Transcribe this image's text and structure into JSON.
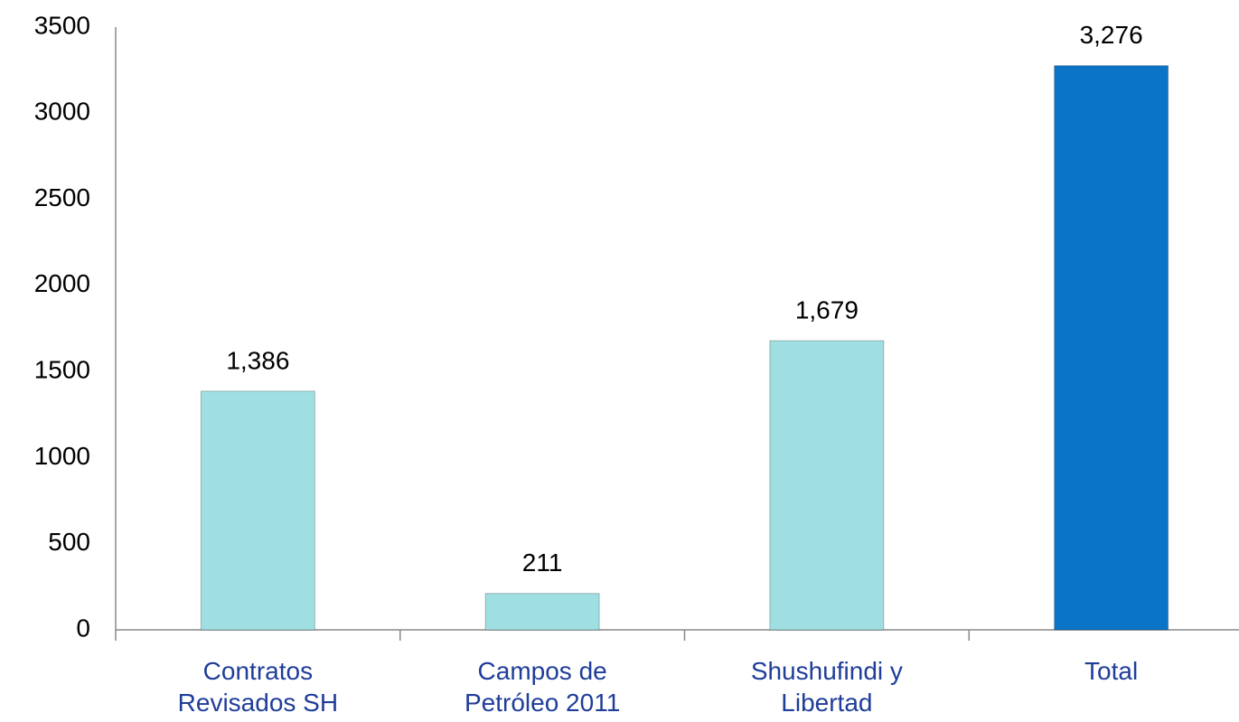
{
  "chart_data": {
    "type": "bar",
    "categories": [
      "Contratos Revisados SH",
      "Campos de Petróleo 2011",
      "Shushufindi y Libertad",
      "Total"
    ],
    "values": [
      1386,
      211,
      1679,
      3276
    ],
    "value_labels": [
      "1,386",
      "211",
      "1,679",
      "3,276"
    ],
    "colors": [
      "#9fdfe2",
      "#9fdfe2",
      "#9fdfe2",
      "#0a74c9"
    ],
    "ylim": [
      0,
      3500
    ],
    "yticks": [
      0,
      500,
      1000,
      1500,
      2000,
      2500,
      3000,
      3500
    ],
    "grid": false
  }
}
